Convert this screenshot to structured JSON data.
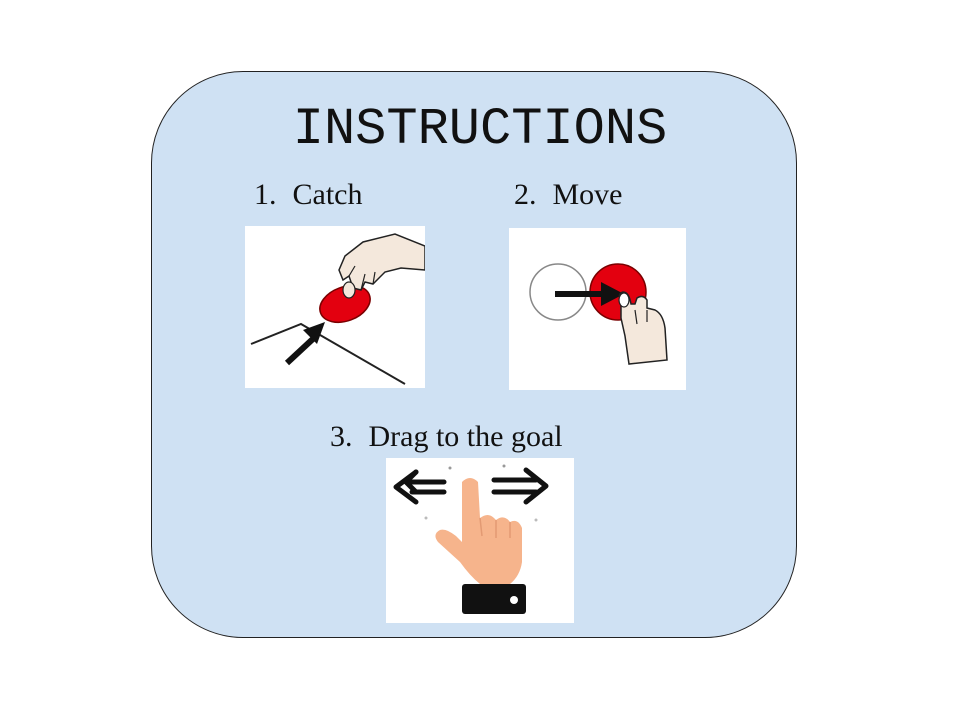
{
  "title": "INSTRUCTIONS",
  "steps": [
    {
      "number": "1.",
      "label": "Catch",
      "icon": "hand-catching-red-disc-icon"
    },
    {
      "number": "2.",
      "label": "Move",
      "icon": "hand-moving-red-disc-icon"
    },
    {
      "number": "3.",
      "label": "Drag to the goal",
      "icon": "finger-swipe-left-right-icon"
    }
  ],
  "colors": {
    "panel_background": "#cfe1f3",
    "disc_red": "#e3000f",
    "skin": "#f6b48c",
    "arrow": "#111111"
  }
}
